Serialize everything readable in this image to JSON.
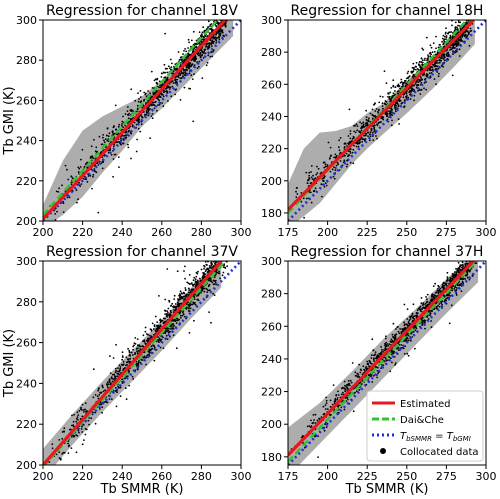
{
  "figure": {
    "shared_ylabel": "Tb GMI (K)",
    "shared_xlabel": "Tb SMMR (K)"
  },
  "legend": {
    "placement": "bottom-right of panel 37H",
    "entries": [
      {
        "label": "Estimated",
        "style": "solid",
        "color": "#e8181d"
      },
      {
        "label": "Dai&Che",
        "style": "dashed",
        "color": "#33c233"
      },
      {
        "label": "T_bSMMR = T_bGMI",
        "style": "dotted",
        "color": "#1f2fd6",
        "math": true
      },
      {
        "label": "Collocated data",
        "style": "marker",
        "color": "#000000"
      }
    ]
  },
  "chart_data": [
    {
      "type": "scatter",
      "title": "Regression for channel 18V",
      "xlim": [
        200,
        300
      ],
      "ylim": [
        200,
        300
      ],
      "xticks": [
        200,
        220,
        240,
        260,
        280,
        300
      ],
      "yticks": [
        200,
        220,
        240,
        260,
        280,
        300
      ],
      "xlabel": "",
      "ylabel": "Tb GMI (K)",
      "data_cloud": {
        "x_range": [
          203,
          292
        ],
        "note": "dense collocated points around estimated line"
      },
      "lines": {
        "estimated": [
          [
            200,
            201
          ],
          [
            292,
            300
          ]
        ],
        "dai_che": [
          [
            200,
            203
          ],
          [
            288,
            300
          ]
        ],
        "identity": [
          [
            200,
            200
          ],
          [
            300,
            300
          ]
        ]
      },
      "uncertainty_band": [
        [
          200,
          196,
          208
        ],
        [
          210,
          203,
          230
        ],
        [
          220,
          212,
          245
        ],
        [
          230,
          224,
          252
        ],
        [
          240,
          235,
          257
        ],
        [
          250,
          247,
          262
        ],
        [
          260,
          256,
          270
        ],
        [
          270,
          266,
          279
        ],
        [
          280,
          276,
          288
        ],
        [
          290,
          286,
          298
        ],
        [
          296,
          292,
          303
        ]
      ]
    },
    {
      "type": "scatter",
      "title": "Regression for channel 18H",
      "xlim": [
        175,
        300
      ],
      "ylim": [
        175,
        300
      ],
      "xticks": [
        175,
        200,
        225,
        250,
        275,
        300
      ],
      "yticks": [
        180,
        200,
        220,
        240,
        260,
        280,
        300
      ],
      "xlabel": "",
      "ylabel": "",
      "data_cloud": {
        "x_range": [
          177,
          290
        ],
        "note": "dense collocated points around estimated line"
      },
      "lines": {
        "estimated": [
          [
            175,
            182
          ],
          [
            292,
            300
          ]
        ],
        "dai_che": [
          [
            175,
            180
          ],
          [
            288,
            300
          ]
        ],
        "identity": [
          [
            175,
            175
          ],
          [
            300,
            300
          ]
        ]
      },
      "uncertainty_band": [
        [
          175,
          170,
          198
        ],
        [
          185,
          178,
          220
        ],
        [
          195,
          186,
          230
        ],
        [
          205,
          198,
          231
        ],
        [
          215,
          210,
          234
        ],
        [
          225,
          220,
          242
        ],
        [
          235,
          229,
          248
        ],
        [
          250,
          242,
          262
        ],
        [
          265,
          256,
          276
        ],
        [
          280,
          271,
          292
        ],
        [
          293,
          285,
          305
        ]
      ]
    },
    {
      "type": "scatter",
      "title": "Regression for channel 37V",
      "xlim": [
        200,
        300
      ],
      "ylim": [
        200,
        300
      ],
      "xticks": [
        200,
        220,
        240,
        260,
        280,
        300
      ],
      "yticks": [
        200,
        220,
        240,
        260,
        280,
        300
      ],
      "xlabel": "Tb SMMR (K)",
      "ylabel": "Tb GMI (K)",
      "data_cloud": {
        "x_range": [
          203,
          292
        ],
        "note": "dense collocated points around estimated line"
      },
      "lines": {
        "estimated": [
          [
            200,
            200
          ],
          [
            290,
            300
          ]
        ],
        "dai_che": [
          [
            200,
            199
          ],
          [
            292,
            300
          ]
        ],
        "identity": [
          [
            200,
            200
          ],
          [
            300,
            300
          ]
        ]
      },
      "uncertainty_band": [
        [
          200,
          193,
          208
        ],
        [
          215,
          210,
          225
        ],
        [
          230,
          226,
          241
        ],
        [
          245,
          241,
          256
        ],
        [
          260,
          256,
          271
        ],
        [
          275,
          272,
          287
        ],
        [
          290,
          287,
          302
        ]
      ]
    },
    {
      "type": "scatter",
      "title": "Regression for channel 37H",
      "xlim": [
        175,
        300
      ],
      "ylim": [
        175,
        300
      ],
      "xticks": [
        175,
        200,
        225,
        250,
        275,
        300
      ],
      "yticks": [
        180,
        200,
        220,
        240,
        260,
        280,
        300
      ],
      "xlabel": "Tb SMMR (K)",
      "ylabel": "",
      "data_cloud": {
        "x_range": [
          177,
          292
        ],
        "note": "dense collocated points around estimated line"
      },
      "lines": {
        "estimated": [
          [
            175,
            181
          ],
          [
            292,
            300
          ]
        ],
        "dai_che": [
          [
            175,
            177
          ],
          [
            294,
            300
          ]
        ],
        "identity": [
          [
            175,
            175
          ],
          [
            300,
            300
          ]
        ]
      },
      "uncertainty_band": [
        [
          175,
          168,
          198
        ],
        [
          195,
          188,
          213
        ],
        [
          215,
          208,
          232
        ],
        [
          235,
          228,
          252
        ],
        [
          255,
          248,
          270
        ],
        [
          275,
          268,
          289
        ],
        [
          295,
          287,
          307
        ]
      ]
    }
  ]
}
